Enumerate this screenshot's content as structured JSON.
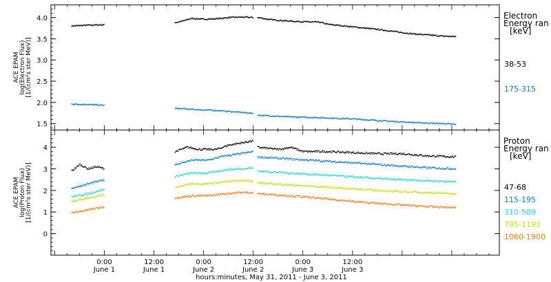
{
  "chart_data": [
    {
      "type": "scatter",
      "title": "",
      "ylabel": [
        "ACE EPAM",
        "log(Electron Flux)",
        "[1/(cm²s ster MeV)]"
      ],
      "ylim": [
        1.35,
        4.3
      ],
      "yticks": [
        1.5,
        2.0,
        2.5,
        3.0,
        3.5,
        4.0
      ],
      "ytick_labels": [
        "1.5",
        "2.0",
        "2.5",
        "3.0",
        "3.5",
        "4.0"
      ],
      "legend_title": [
        "Electron",
        "Energy ran",
        "[keV]"
      ],
      "series": [
        {
          "name": "38-53",
          "color": "#000000",
          "segments": [
            [
              [
                -8,
                3.8
              ],
              [
                -4,
                3.82
              ],
              [
                0,
                3.83
              ]
            ],
            [
              [
                17,
                3.88
              ],
              [
                19,
                3.92
              ],
              [
                21,
                3.98
              ],
              [
                24,
                3.96
              ],
              [
                27,
                3.97
              ],
              [
                30,
                4.0
              ],
              [
                33,
                4.01
              ],
              [
                36,
                4.0
              ]
            ],
            [
              [
                37,
                4.0
              ],
              [
                40,
                3.95
              ],
              [
                44,
                3.92
              ],
              [
                48,
                3.9
              ],
              [
                52,
                3.89
              ],
              [
                54,
                3.84
              ],
              [
                58,
                3.8
              ],
              [
                62,
                3.76
              ],
              [
                66,
                3.72
              ],
              [
                70,
                3.67
              ],
              [
                74,
                3.62
              ],
              [
                78,
                3.59
              ],
              [
                82,
                3.56
              ],
              [
                85,
                3.55
              ]
            ]
          ]
        },
        {
          "name": "175-315",
          "color": "#0a78d2",
          "segments": [
            [
              [
                -8,
                1.96
              ],
              [
                -4,
                1.95
              ],
              [
                0,
                1.93
              ]
            ],
            [
              [
                17,
                1.86
              ],
              [
                22,
                1.83
              ],
              [
                27,
                1.81
              ],
              [
                31,
                1.78
              ],
              [
                36,
                1.74
              ]
            ],
            [
              [
                37,
                1.7
              ],
              [
                44,
                1.66
              ],
              [
                52,
                1.64
              ],
              [
                60,
                1.61
              ],
              [
                68,
                1.56
              ],
              [
                76,
                1.52
              ],
              [
                82,
                1.5
              ],
              [
                85,
                1.48
              ]
            ]
          ]
        }
      ]
    },
    {
      "type": "scatter",
      "title": "",
      "ylabel": [
        "ACE EPAM",
        "log(Proton Flux)",
        "[1/(cm²s ster MeV)]"
      ],
      "ylim": [
        -1.0,
        4.8
      ],
      "yticks": [
        0,
        1,
        2,
        3,
        4
      ],
      "ytick_labels": [
        "0",
        "1",
        "2",
        "3",
        "4"
      ],
      "legend_title": [
        "Proton",
        "Energy ran",
        "[keV]"
      ],
      "series": [
        {
          "name": "47-68",
          "color": "#000000",
          "segments": [
            [
              [
                -8,
                2.9
              ],
              [
                -6,
                3.2
              ],
              [
                -4,
                3.0
              ],
              [
                -2,
                3.1
              ],
              [
                0,
                3.0
              ]
            ],
            [
              [
                17,
                3.8
              ],
              [
                20,
                4.0
              ],
              [
                23,
                3.9
              ],
              [
                27,
                3.9
              ],
              [
                30,
                4.1
              ],
              [
                33,
                4.2
              ],
              [
                36,
                4.3
              ]
            ],
            [
              [
                37,
                4.0
              ],
              [
                42,
                3.9
              ],
              [
                45,
                4.0
              ],
              [
                48,
                3.8
              ],
              [
                54,
                3.8
              ],
              [
                60,
                3.75
              ],
              [
                66,
                3.7
              ],
              [
                72,
                3.7
              ],
              [
                78,
                3.6
              ],
              [
                85,
                3.55
              ]
            ]
          ]
        },
        {
          "name": "115-195",
          "color": "#0a78d2",
          "segments": [
            [
              [
                -8,
                2.1
              ],
              [
                -4,
                2.3
              ],
              [
                0,
                2.5
              ]
            ],
            [
              [
                17,
                3.2
              ],
              [
                21,
                3.4
              ],
              [
                25,
                3.4
              ],
              [
                29,
                3.6
              ],
              [
                33,
                3.7
              ],
              [
                36,
                3.8
              ]
            ],
            [
              [
                37,
                3.55
              ],
              [
                45,
                3.45
              ],
              [
                54,
                3.35
              ],
              [
                62,
                3.25
              ],
              [
                70,
                3.15
              ],
              [
                78,
                3.05
              ],
              [
                85,
                3.0
              ]
            ]
          ]
        },
        {
          "name": "310-580",
          "color": "#22d8d0",
          "segments": [
            [
              [
                -8,
                1.7
              ],
              [
                -4,
                1.85
              ],
              [
                0,
                2.05
              ]
            ],
            [
              [
                17,
                2.65
              ],
              [
                21,
                2.8
              ],
              [
                25,
                2.8
              ],
              [
                29,
                2.95
              ],
              [
                33,
                3.0
              ],
              [
                36,
                3.05
              ]
            ],
            [
              [
                37,
                2.9
              ],
              [
                45,
                2.8
              ],
              [
                54,
                2.7
              ],
              [
                62,
                2.6
              ],
              [
                70,
                2.5
              ],
              [
                78,
                2.45
              ],
              [
                85,
                2.4
              ]
            ]
          ]
        },
        {
          "name": "795-1193",
          "color": "#c8dc10",
          "segments": [
            [
              [
                -8,
                1.5
              ],
              [
                -4,
                1.65
              ],
              [
                0,
                1.8
              ]
            ],
            [
              [
                17,
                2.15
              ],
              [
                21,
                2.3
              ],
              [
                25,
                2.3
              ],
              [
                29,
                2.4
              ],
              [
                33,
                2.45
              ],
              [
                36,
                2.45
              ]
            ],
            [
              [
                37,
                2.35
              ],
              [
                45,
                2.25
              ],
              [
                54,
                2.15
              ],
              [
                62,
                2.05
              ],
              [
                70,
                1.95
              ],
              [
                78,
                1.9
              ],
              [
                85,
                1.85
              ]
            ]
          ]
        },
        {
          "name": "1060-1900",
          "color": "#f07b1a",
          "segments": [
            [
              [
                -8,
                0.95
              ],
              [
                -4,
                1.1
              ],
              [
                0,
                1.25
              ]
            ],
            [
              [
                17,
                1.65
              ],
              [
                21,
                1.75
              ],
              [
                25,
                1.75
              ],
              [
                29,
                1.85
              ],
              [
                33,
                1.9
              ],
              [
                36,
                1.9
              ]
            ],
            [
              [
                37,
                1.85
              ],
              [
                45,
                1.75
              ],
              [
                54,
                1.6
              ],
              [
                62,
                1.45
              ],
              [
                70,
                1.35
              ],
              [
                78,
                1.25
              ],
              [
                85,
                1.2
              ]
            ]
          ]
        }
      ]
    }
  ],
  "x_axis": {
    "range_hours": [
      -12.9,
      95.5
    ],
    "ticks": [
      {
        "hour": 0,
        "time": "0:00",
        "date": "June 1"
      },
      {
        "hour": 12,
        "time": "12:00",
        "date": "June 1"
      },
      {
        "hour": 24,
        "time": "0:00",
        "date": "June 2"
      },
      {
        "hour": 36,
        "time": "12:00",
        "date": "June 2"
      },
      {
        "hour": 48,
        "time": "0:00",
        "date": "June 3"
      },
      {
        "hour": 60,
        "time": "12:00",
        "date": "June 3"
      }
    ],
    "xlabel": "hours:minutes, May 31, 2011 - June  3, 2011"
  }
}
